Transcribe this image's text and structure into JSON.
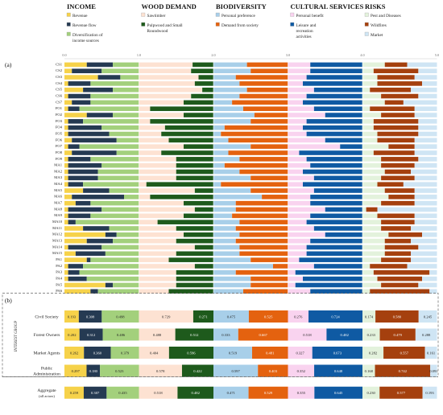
{
  "chart_data": {
    "type": "bar",
    "panel_labels": [
      "(a)",
      "(b)"
    ],
    "sections": [
      {
        "title": "INCOME",
        "legend": [
          {
            "label": "Revenue",
            "color": "#f6d24a"
          },
          {
            "label": "Revenue flow",
            "color": "#253a52"
          },
          {
            "label": "Diversification of income sources",
            "color": "#a3d07c"
          }
        ]
      },
      {
        "title": "WOOD DEMAND",
        "legend": [
          {
            "label": "Sawtimber",
            "color": "#fde2d2"
          },
          {
            "label": "Pulpwood and Small Roundwood",
            "color": "#1e5a1c"
          }
        ]
      },
      {
        "title": "BIODIVERSITY",
        "legend": [
          {
            "label": "Personal preference",
            "color": "#a8cfe9"
          },
          {
            "label": "Demand from society",
            "color": "#e4620f"
          }
        ]
      },
      {
        "title": "CULTURAL SERVICES",
        "legend": [
          {
            "label": "Personal benefit",
            "color": "#f9d3ef"
          },
          {
            "label": "Leisure and recreation activities",
            "color": "#0f5aa3"
          }
        ]
      },
      {
        "title": "RISKS",
        "legend": [
          {
            "label": "Pest and Diseases",
            "color": "#e3f2dc"
          },
          {
            "label": "Wildfires",
            "color": "#a5400e"
          },
          {
            "label": "Market",
            "color": "#cfe5f4"
          }
        ]
      }
    ],
    "axis_ticks": [
      "0.0",
      "1.0",
      "2.0",
      "3.0",
      "4.0",
      "5.0"
    ],
    "respondents": [
      "CS1",
      "CS2",
      "CS3",
      "CS4",
      "CS5",
      "CS6",
      "CS7",
      "FO1",
      "FO2",
      "FO3",
      "FO4",
      "FO5",
      "FO6",
      "FO7",
      "FO8",
      "FO9",
      "MA1",
      "MA2",
      "MA3",
      "MA4",
      "MA5",
      "MA6",
      "MA7",
      "MA8",
      "MA9",
      "MA10",
      "MA11",
      "MA12",
      "MA13",
      "MA14",
      "MA15",
      "PA1",
      "PA2",
      "PA3",
      "PA4",
      "PA5",
      "PA6"
    ],
    "individual": [
      [
        [
          0.3,
          0.35,
          0.35
        ],
        [
          0.72,
          0.28
        ],
        [
          0.45,
          0.55
        ],
        [
          0.3,
          0.7
        ],
        [
          0.3,
          0.3,
          0.4
        ]
      ],
      [
        [
          0.1,
          0.4,
          0.5
        ],
        [
          0.7,
          0.3
        ],
        [
          0.5,
          0.5
        ],
        [
          0.3,
          0.7
        ],
        [
          0.15,
          0.6,
          0.25
        ]
      ],
      [
        [
          0.45,
          0.3,
          0.25
        ],
        [
          0.8,
          0.2
        ],
        [
          0.3,
          0.7
        ],
        [
          0.25,
          0.75
        ],
        [
          0.2,
          0.5,
          0.3
        ]
      ],
      [
        [
          0.05,
          0.3,
          0.65
        ],
        [
          0.75,
          0.25
        ],
        [
          0.35,
          0.65
        ],
        [
          0.2,
          0.8
        ],
        [
          0.2,
          0.6,
          0.2
        ]
      ],
      [
        [
          0.25,
          0.4,
          0.35
        ],
        [
          0.85,
          0.15
        ],
        [
          0.45,
          0.55
        ],
        [
          0.35,
          0.65
        ],
        [
          0.1,
          0.55,
          0.35
        ]
      ],
      [
        [
          0.05,
          0.3,
          0.65
        ],
        [
          0.7,
          0.3
        ],
        [
          0.35,
          0.65
        ],
        [
          0.25,
          0.75
        ],
        [
          0.25,
          0.5,
          0.25
        ]
      ],
      [
        [
          0.1,
          0.25,
          0.65
        ],
        [
          0.6,
          0.4
        ],
        [
          0.25,
          0.75
        ],
        [
          0.2,
          0.8
        ],
        [
          0.3,
          0.25,
          0.45
        ]
      ],
      [
        [
          0.05,
          0.15,
          0.8
        ],
        [
          0.15,
          0.85
        ],
        [
          0.4,
          0.6
        ],
        [
          0.35,
          0.65
        ],
        [
          0.1,
          0.6,
          0.3
        ]
      ],
      [
        [
          0.3,
          0.35,
          0.35
        ],
        [
          0.6,
          0.4
        ],
        [
          0.55,
          0.45
        ],
        [
          0.5,
          0.5
        ],
        [
          0.25,
          0.45,
          0.3
        ]
      ],
      [
        [
          0.05,
          0.2,
          0.75
        ],
        [
          0.15,
          0.85
        ],
        [
          0.5,
          0.5
        ],
        [
          0.25,
          0.75
        ],
        [
          0.15,
          0.6,
          0.25
        ]
      ],
      [
        [
          0.05,
          0.45,
          0.5
        ],
        [
          0.35,
          0.65
        ],
        [
          0.15,
          0.85
        ],
        [
          0.2,
          0.8
        ],
        [
          0.15,
          0.6,
          0.25
        ]
      ],
      [
        [
          0.05,
          0.55,
          0.4
        ],
        [
          0.3,
          0.7
        ],
        [
          0.1,
          0.9
        ],
        [
          0.25,
          0.75
        ],
        [
          0.2,
          0.55,
          0.25
        ]
      ],
      [
        [
          0.1,
          0.6,
          0.3
        ],
        [
          0.4,
          0.6
        ],
        [
          0.2,
          0.8
        ],
        [
          0.5,
          0.5
        ],
        [
          0.2,
          0.5,
          0.3
        ]
      ],
      [
        [
          0.05,
          0.15,
          0.8
        ],
        [
          0.6,
          0.4
        ],
        [
          0.5,
          0.5
        ],
        [
          0.7,
          0.3
        ],
        [
          0.35,
          0.35,
          0.3
        ]
      ],
      [
        [
          0.1,
          0.6,
          0.3
        ],
        [
          0.3,
          0.7
        ],
        [
          0.2,
          0.8
        ],
        [
          0.15,
          0.85
        ],
        [
          0.15,
          0.55,
          0.3
        ]
      ],
      [
        [
          0.05,
          0.3,
          0.65
        ],
        [
          0.5,
          0.5
        ],
        [
          0.35,
          0.65
        ],
        [
          0.25,
          0.75
        ],
        [
          0.25,
          0.5,
          0.25
        ]
      ],
      [
        [
          0.05,
          0.45,
          0.5
        ],
        [
          0.5,
          0.5
        ],
        [
          0.15,
          0.85
        ],
        [
          0.3,
          0.7
        ],
        [
          0.25,
          0.45,
          0.3
        ]
      ],
      [
        [
          0.05,
          0.4,
          0.55
        ],
        [
          0.5,
          0.5
        ],
        [
          0.35,
          0.65
        ],
        [
          0.2,
          0.8
        ],
        [
          0.3,
          0.35,
          0.35
        ]
      ],
      [
        [
          0.05,
          0.4,
          0.55
        ],
        [
          0.5,
          0.5
        ],
        [
          0.5,
          0.5
        ],
        [
          0.35,
          0.65
        ],
        [
          0.25,
          0.45,
          0.3
        ]
      ],
      [
        [
          0.05,
          0.2,
          0.75
        ],
        [
          0.1,
          0.9
        ],
        [
          0.1,
          0.9
        ],
        [
          0.2,
          0.8
        ],
        [
          0.2,
          0.35,
          0.45
        ]
      ],
      [
        [
          0.25,
          0.35,
          0.4
        ],
        [
          0.75,
          0.25
        ],
        [
          0.5,
          0.5
        ],
        [
          0.35,
          0.65
        ],
        [
          0.3,
          0.4,
          0.3
        ]
      ],
      [
        [
          0.1,
          0.7,
          0.2
        ],
        [
          0.15,
          0.85
        ],
        [
          0.65,
          0.35
        ],
        [
          0.3,
          0.7
        ],
        [
          0.35,
          0.35,
          0.3
        ]
      ],
      [
        [
          0.15,
          0.2,
          0.65
        ],
        [
          0.6,
          0.4
        ],
        [
          0.3,
          0.7
        ],
        [
          0.3,
          0.7
        ],
        [
          0.25,
          0.45,
          0.3
        ]
      ],
      [
        [
          0.05,
          0.45,
          0.5
        ],
        [
          0.75,
          0.25
        ],
        [
          0.3,
          0.7
        ],
        [
          0.5,
          0.5
        ],
        [
          0.05,
          0.15,
          0.8
        ]
      ],
      [
        [
          0.05,
          0.3,
          0.65
        ],
        [
          0.6,
          0.4
        ],
        [
          0.25,
          0.75
        ],
        [
          0.3,
          0.7
        ],
        [
          0.2,
          0.5,
          0.3
        ]
      ],
      [
        [
          0.05,
          0.1,
          0.85
        ],
        [
          0.25,
          0.75
        ],
        [
          0.35,
          0.65
        ],
        [
          0.25,
          0.75
        ],
        [
          0.25,
          0.45,
          0.3
        ]
      ],
      [
        [
          0.25,
          0.35,
          0.4
        ],
        [
          0.5,
          0.5
        ],
        [
          0.3,
          0.7
        ],
        [
          0.35,
          0.65
        ],
        [
          0.25,
          0.4,
          0.35
        ]
      ],
      [
        [
          0.55,
          0.15,
          0.3
        ],
        [
          0.6,
          0.4
        ],
        [
          0.35,
          0.65
        ],
        [
          0.5,
          0.5
        ],
        [
          0.35,
          0.45,
          0.2
        ]
      ],
      [
        [
          0.3,
          0.35,
          0.35
        ],
        [
          0.5,
          0.5
        ],
        [
          0.3,
          0.7
        ],
        [
          0.3,
          0.7
        ],
        [
          0.3,
          0.35,
          0.35
        ]
      ],
      [
        [
          0.05,
          0.45,
          0.5
        ],
        [
          0.75,
          0.25
        ],
        [
          0.35,
          0.65
        ],
        [
          0.25,
          0.75
        ],
        [
          0.3,
          0.45,
          0.25
        ]
      ],
      [
        [
          0.15,
          0.4,
          0.45
        ],
        [
          0.5,
          0.5
        ],
        [
          0.35,
          0.65
        ],
        [
          0.25,
          0.75
        ],
        [
          0.3,
          0.35,
          0.35
        ]
      ],
      [
        [
          0.3,
          0.05,
          0.65
        ],
        [
          0.4,
          0.6
        ],
        [
          0.5,
          0.5
        ],
        [
          0.15,
          0.85
        ],
        [
          0.25,
          0.4,
          0.35
        ]
      ],
      [
        [
          0.05,
          0.2,
          0.75
        ],
        [
          0.75,
          0.25
        ],
        [
          0.8,
          0.2
        ],
        [
          0.35,
          0.65
        ],
        [
          0.1,
          0.5,
          0.4
        ]
      ],
      [
        [
          0.05,
          0.15,
          0.8
        ],
        [
          0.5,
          0.5
        ],
        [
          0.3,
          0.7
        ],
        [
          0.1,
          0.9
        ],
        [
          0.15,
          0.75,
          0.1
        ]
      ],
      [
        [
          0.05,
          0.25,
          0.7
        ],
        [
          0.5,
          0.5
        ],
        [
          0.5,
          0.5
        ],
        [
          0.2,
          0.8
        ],
        [
          0.2,
          0.6,
          0.2
        ]
      ],
      [
        [
          0.55,
          0.1,
          0.35
        ],
        [
          0.5,
          0.5
        ],
        [
          0.5,
          0.5
        ],
        [
          0.1,
          0.9
        ],
        [
          0.25,
          0.5,
          0.25
        ]
      ],
      [
        [
          0.35,
          0.1,
          0.55
        ],
        [
          0.4,
          0.6
        ],
        [
          0.4,
          0.6
        ],
        [
          0.3,
          0.7
        ],
        [
          0.1,
          0.8,
          0.1
        ]
      ]
    ],
    "group_axis_label": "INTEREST GROUP",
    "groups": [
      {
        "name": "Civil Society",
        "values": [
          [
            "0.193",
            "0.308",
            "0.498"
          ],
          [
            "0.729",
            "0.271"
          ],
          [
            "0.475",
            "0.525"
          ],
          [
            "0.276",
            "0.724"
          ],
          [
            "0.174",
            "0.580",
            "0.245"
          ]
        ]
      },
      {
        "name": "Forest Owners",
        "values": [
          [
            "0.202",
            "0.312",
            "0.486"
          ],
          [
            "0.488",
            "0.512"
          ],
          [
            "0.333",
            "0.667"
          ],
          [
            "0.518",
            "0.482"
          ],
          [
            "0.233",
            "0.479",
            "0.288"
          ]
        ]
      },
      {
        "name": "Market Agents",
        "values": [
          [
            "0.262",
            "0.360",
            "0.379"
          ],
          [
            "0.404",
            "0.596"
          ],
          [
            "0.519",
            "0.481"
          ],
          [
            "0.327",
            "0.673"
          ],
          [
            "0.282",
            "0.557",
            "0.161"
          ]
        ]
      },
      {
        "name": "Public Administration",
        "values": [
          [
            "0.297",
            "0.180",
            "0.523"
          ],
          [
            "0.578",
            "0.422"
          ],
          [
            "0.597",
            "0.403"
          ],
          [
            "0.352",
            "0.648"
          ],
          [
            "0.168",
            "0.742",
            "0.091"
          ]
        ]
      }
    ],
    "aggregate": {
      "name": "Aggregate (all actors)",
      "values": [
        [
          "0.259",
          "0.307",
          "0.435"
        ],
        [
          "0.518",
          "0.482"
        ],
        [
          "0.471",
          "0.529"
        ],
        [
          "0.355",
          "0.645"
        ],
        [
          "0.230",
          "0.577",
          "0.193"
        ]
      ]
    }
  }
}
